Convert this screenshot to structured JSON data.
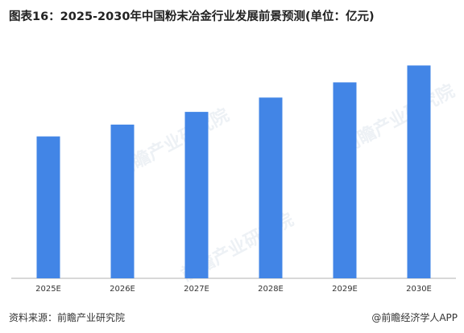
{
  "title": "图表16：2025-2030年中国粉末冶金行业发展前景预测(单位：亿元)",
  "source": "资料来源：前瞻产业研究院",
  "brand": "@前瞻经济学人APP",
  "watermark": "前瞻产业研究院",
  "colors": {
    "bar": "#4285e6",
    "axis": "#b0b0b0"
  },
  "chart_data": {
    "type": "bar",
    "title": "图表16：2025-2030年中国粉末冶金行业发展前景预测(单位：亿元)",
    "categories": [
      "2025E",
      "2026E",
      "2027E",
      "2028E",
      "2029E",
      "2030E"
    ],
    "values": [
      168,
      182,
      197,
      214,
      232,
      252
    ],
    "ylim": [
      0,
      280
    ],
    "grid": false,
    "legend": "none"
  }
}
